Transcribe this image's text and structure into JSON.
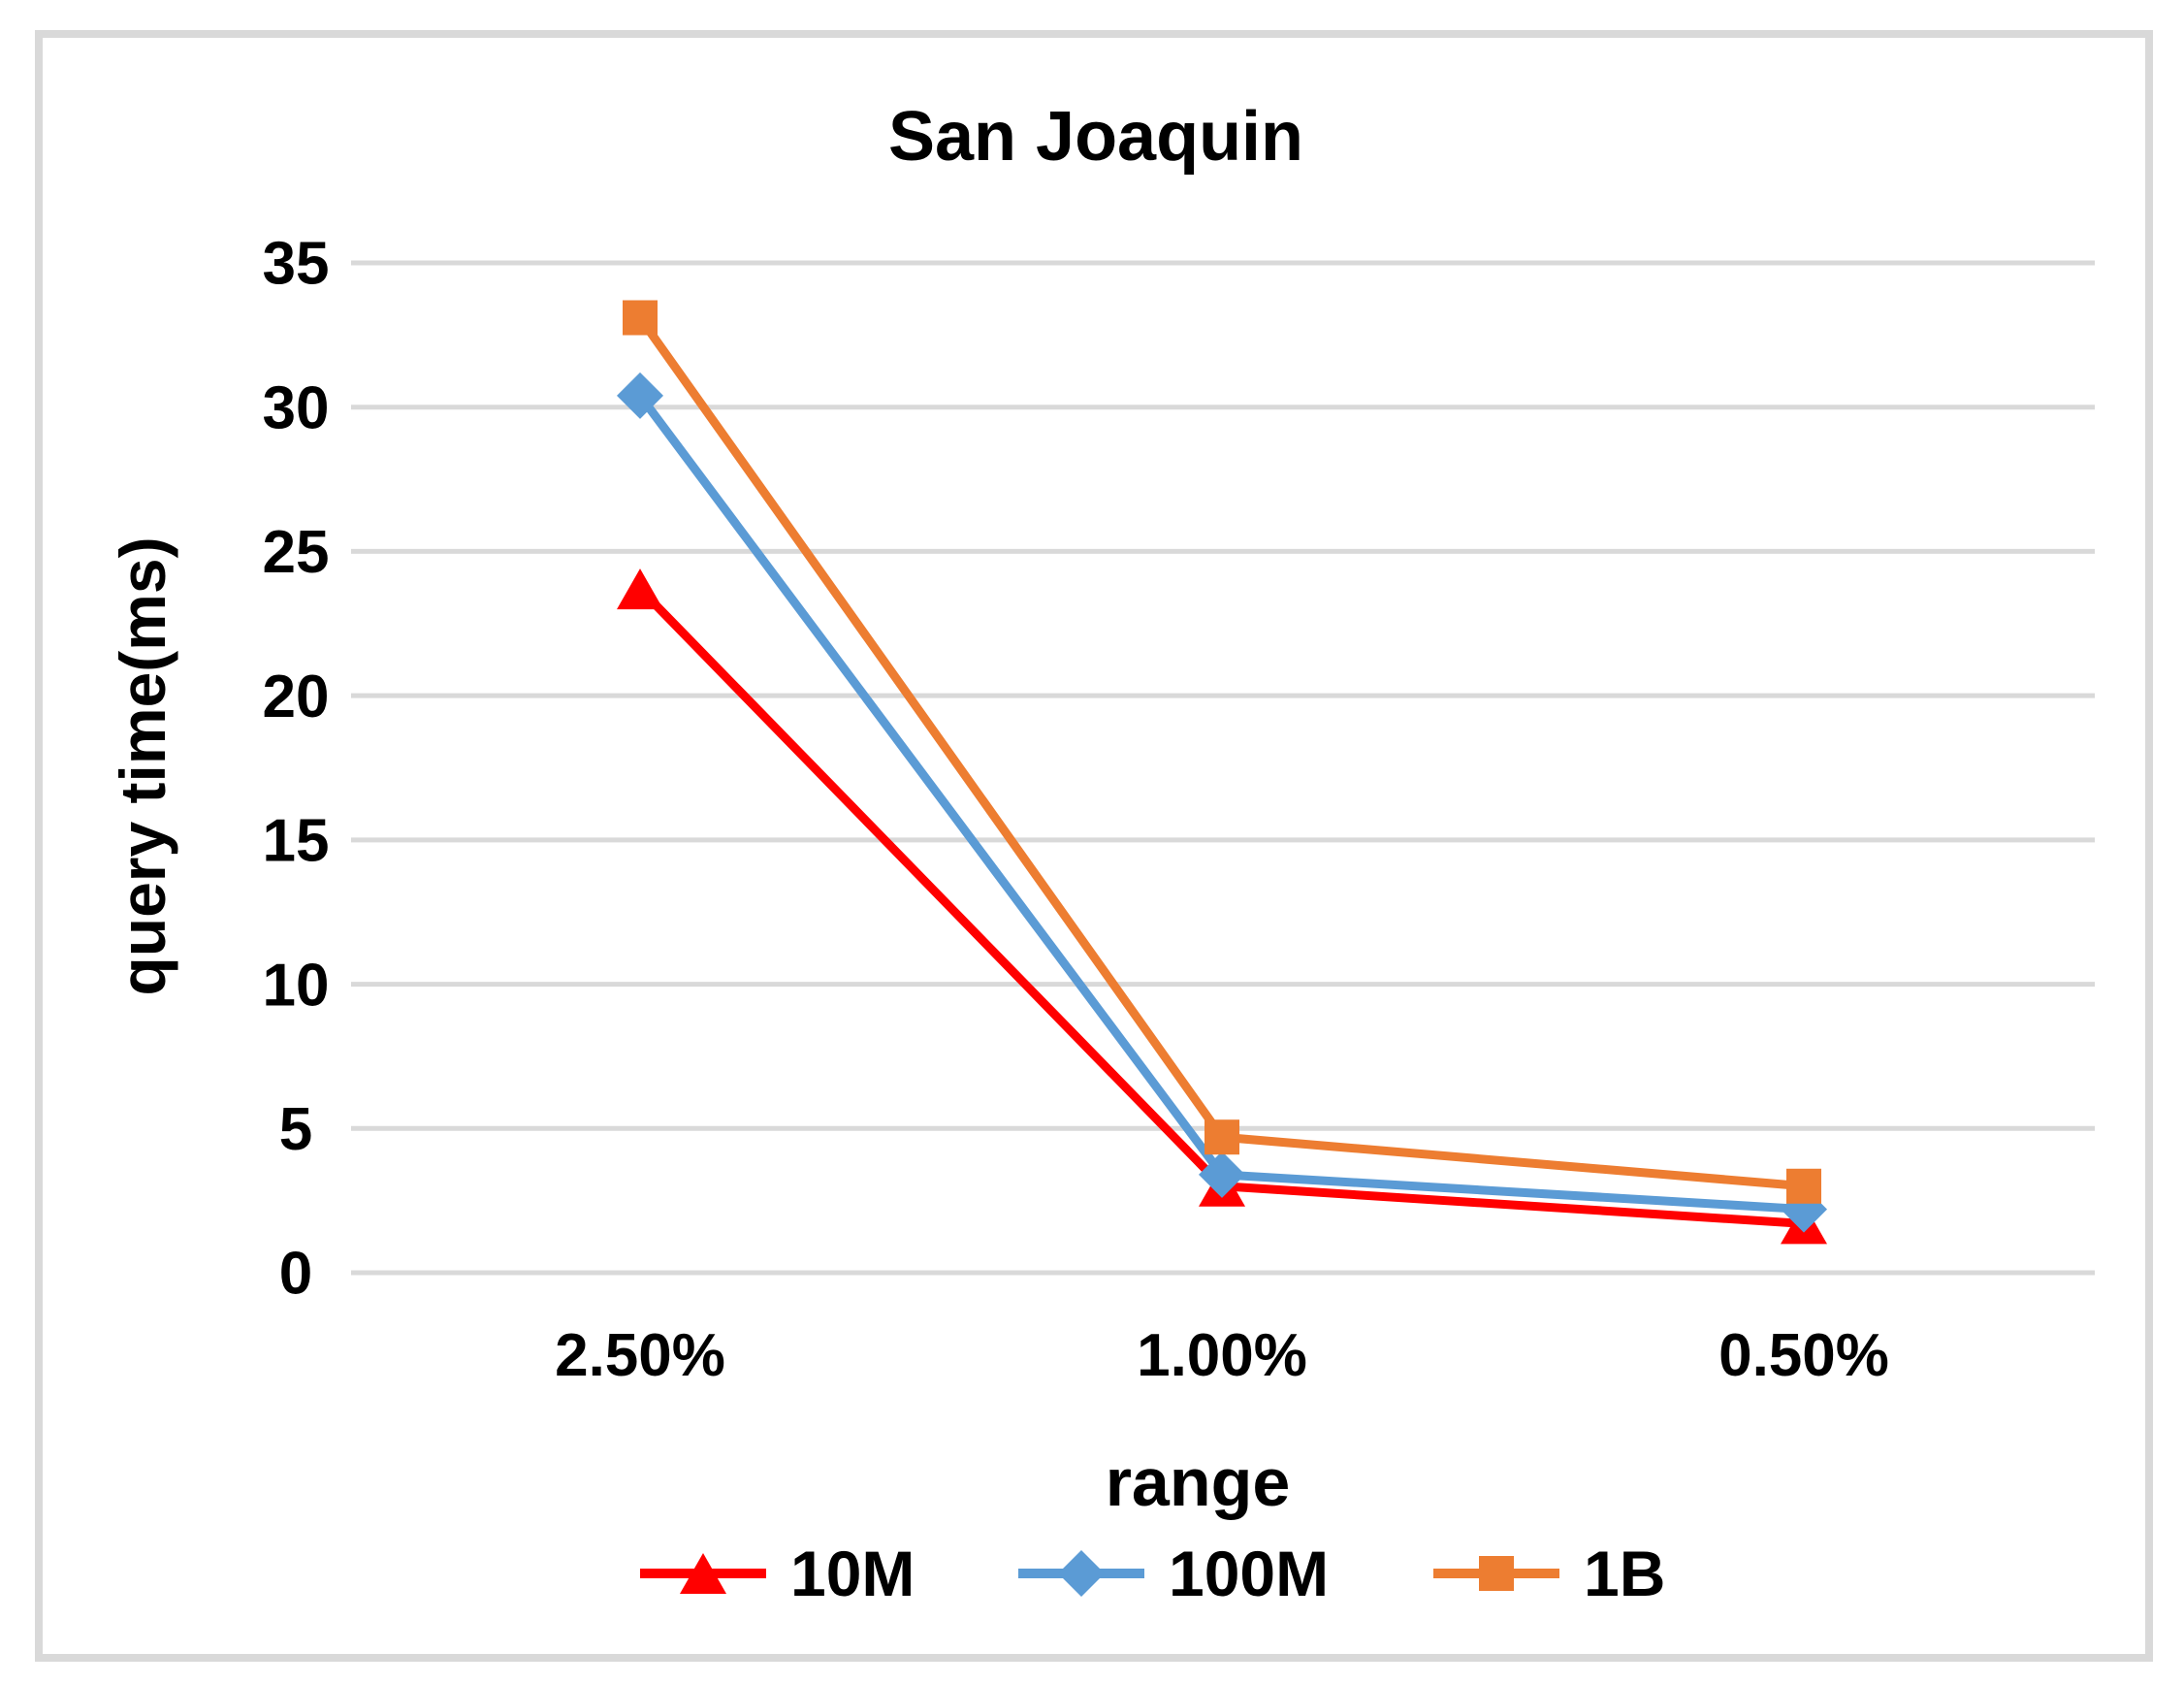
{
  "chart_data": {
    "type": "line",
    "title": "San Joaquin",
    "xlabel": "range",
    "ylabel": "query time(ms)",
    "categories": [
      "2.50%",
      "1.00%",
      "0.50%"
    ],
    "series": [
      {
        "name": "10M",
        "color": "#FF0000",
        "marker": "triangle",
        "values": [
          23.7,
          3.0,
          1.7
        ]
      },
      {
        "name": "100M",
        "color": "#5B9BD5",
        "marker": "diamond",
        "values": [
          30.4,
          3.4,
          2.2
        ]
      },
      {
        "name": "1B",
        "color": "#ED7D31",
        "marker": "square",
        "values": [
          33.1,
          4.7,
          3.0
        ]
      }
    ],
    "ylim": [
      0,
      35
    ],
    "yticks": [
      0,
      5,
      10,
      15,
      20,
      25,
      30,
      35
    ],
    "grid": "horizontal",
    "gridline_color": "#D9D9D9",
    "border_color": "#D9D9D9",
    "background_color": "#FFFFFF",
    "text_color": "#000000",
    "legend_position": "bottom"
  }
}
